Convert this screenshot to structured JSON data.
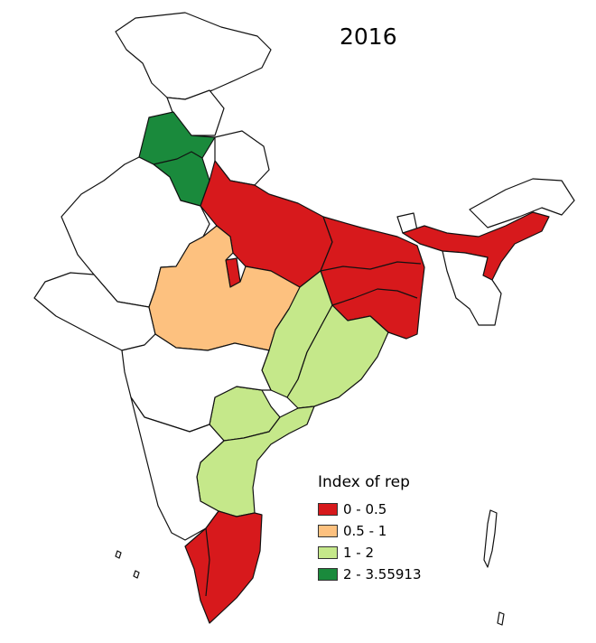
{
  "map": {
    "title": "2016",
    "legend": {
      "title": "Index of rep",
      "classes": [
        {
          "label": "0 - 0.5",
          "color": "#d7191c"
        },
        {
          "label": "0.5 - 1",
          "color": "#fdc17f"
        },
        {
          "label": "1 - 2",
          "color": "#c5e88a"
        },
        {
          "label": "2 - 3.55913",
          "color": "#1a8a3c"
        }
      ]
    },
    "region_colors": {
      "no_data": "#ffffff",
      "class_0_0_5": "#d7191c",
      "class_0_5_1": "#fdc17f",
      "class_1_2": "#c5e88a",
      "class_2_3_56": "#1a8a3c"
    }
  }
}
